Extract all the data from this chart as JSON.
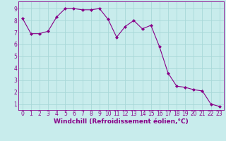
{
  "x": [
    0,
    1,
    2,
    3,
    4,
    5,
    6,
    7,
    8,
    9,
    10,
    11,
    12,
    13,
    14,
    15,
    16,
    17,
    18,
    19,
    20,
    21,
    22,
    23
  ],
  "y": [
    8.2,
    6.9,
    6.9,
    7.1,
    8.3,
    9.0,
    9.0,
    8.9,
    8.9,
    9.0,
    8.1,
    6.6,
    7.5,
    8.0,
    7.3,
    7.6,
    5.8,
    3.6,
    2.5,
    2.4,
    2.2,
    2.1,
    1.0,
    0.8
  ],
  "line_color": "#880088",
  "marker": "D",
  "marker_size": 2,
  "bg_color": "#c8ecec",
  "grid_color": "#a8d8d8",
  "xlabel": "Windchill (Refroidissement éolien,°C)",
  "ylabel": "",
  "xlim": [
    -0.5,
    23.5
  ],
  "ylim": [
    0.5,
    9.6
  ],
  "yticks": [
    1,
    2,
    3,
    4,
    5,
    6,
    7,
    8,
    9
  ],
  "xticks": [
    0,
    1,
    2,
    3,
    4,
    5,
    6,
    7,
    8,
    9,
    10,
    11,
    12,
    13,
    14,
    15,
    16,
    17,
    18,
    19,
    20,
    21,
    22,
    23
  ],
  "tick_fontsize": 5.5,
  "xlabel_fontsize": 6.5,
  "label_color": "#880088"
}
